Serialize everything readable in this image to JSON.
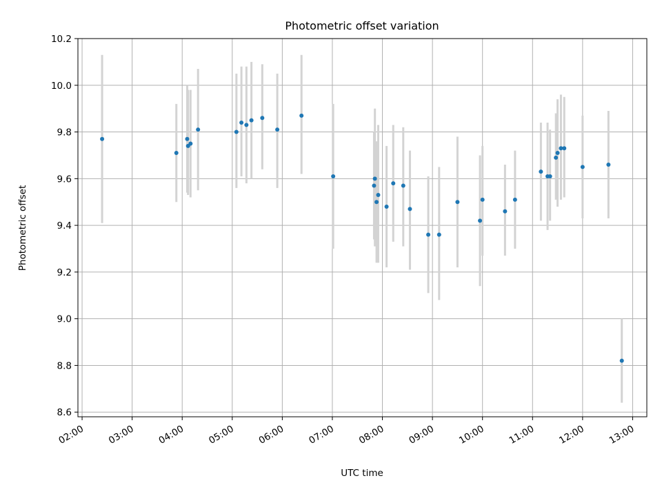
{
  "chart_data": {
    "type": "scatter",
    "title": "Photometric offset variation",
    "xlabel": "UTC time",
    "ylabel": "Photometric offset",
    "xlim": [
      "01:55",
      "13:17"
    ],
    "ylim": [
      8.58,
      10.2
    ],
    "grid": true,
    "x_ticks": [
      "02:00",
      "03:00",
      "04:00",
      "05:00",
      "06:00",
      "07:00",
      "08:00",
      "09:00",
      "10:00",
      "11:00",
      "12:00",
      "13:00"
    ],
    "y_ticks": [
      8.6,
      8.8,
      9.0,
      9.2,
      9.4,
      9.6,
      9.8,
      10.0,
      10.2
    ],
    "point_color": "#1f77b4",
    "errorbar_color": "#d3d3d3",
    "points": [
      {
        "x": "02:24",
        "y": 9.77,
        "ylow": 9.41,
        "yhigh": 10.13
      },
      {
        "x": "03:53",
        "y": 9.71,
        "ylow": 9.5,
        "yhigh": 9.92
      },
      {
        "x": "04:06",
        "y": 9.77,
        "ylow": 9.54,
        "yhigh": 10.0
      },
      {
        "x": "04:07",
        "y": 9.74,
        "ylow": 9.53,
        "yhigh": 9.98
      },
      {
        "x": "04:10",
        "y": 9.75,
        "ylow": 9.52,
        "yhigh": 9.98
      },
      {
        "x": "04:19",
        "y": 9.81,
        "ylow": 9.55,
        "yhigh": 10.07
      },
      {
        "x": "05:05",
        "y": 9.8,
        "ylow": 9.56,
        "yhigh": 10.05
      },
      {
        "x": "05:11",
        "y": 9.84,
        "ylow": 9.61,
        "yhigh": 10.08
      },
      {
        "x": "05:17",
        "y": 9.83,
        "ylow": 9.58,
        "yhigh": 10.08
      },
      {
        "x": "05:23",
        "y": 9.85,
        "ylow": 9.6,
        "yhigh": 10.1
      },
      {
        "x": "05:36",
        "y": 9.86,
        "ylow": 9.64,
        "yhigh": 10.09
      },
      {
        "x": "05:54",
        "y": 9.81,
        "ylow": 9.56,
        "yhigh": 10.05
      },
      {
        "x": "06:23",
        "y": 9.87,
        "ylow": 9.62,
        "yhigh": 10.13
      },
      {
        "x": "07:01",
        "y": 9.61,
        "ylow": 9.3,
        "yhigh": 9.92
      },
      {
        "x": "07:50",
        "y": 9.57,
        "ylow": 9.34,
        "yhigh": 9.8
      },
      {
        "x": "07:51",
        "y": 9.6,
        "ylow": 9.31,
        "yhigh": 9.9
      },
      {
        "x": "07:53",
        "y": 9.5,
        "ylow": 9.24,
        "yhigh": 9.76
      },
      {
        "x": "07:55",
        "y": 9.53,
        "ylow": 9.24,
        "yhigh": 9.83
      },
      {
        "x": "08:05",
        "y": 9.48,
        "ylow": 9.22,
        "yhigh": 9.74
      },
      {
        "x": "08:13",
        "y": 9.58,
        "ylow": 9.33,
        "yhigh": 9.83
      },
      {
        "x": "08:25",
        "y": 9.57,
        "ylow": 9.31,
        "yhigh": 9.82
      },
      {
        "x": "08:33",
        "y": 9.47,
        "ylow": 9.21,
        "yhigh": 9.72
      },
      {
        "x": "08:55",
        "y": 9.36,
        "ylow": 9.11,
        "yhigh": 9.61
      },
      {
        "x": "09:08",
        "y": 9.36,
        "ylow": 9.08,
        "yhigh": 9.65
      },
      {
        "x": "09:30",
        "y": 9.5,
        "ylow": 9.22,
        "yhigh": 9.78
      },
      {
        "x": "09:57",
        "y": 9.42,
        "ylow": 9.14,
        "yhigh": 9.7
      },
      {
        "x": "10:00",
        "y": 9.51,
        "ylow": 9.27,
        "yhigh": 9.74
      },
      {
        "x": "10:27",
        "y": 9.46,
        "ylow": 9.27,
        "yhigh": 9.66
      },
      {
        "x": "10:39",
        "y": 9.51,
        "ylow": 9.3,
        "yhigh": 9.72
      },
      {
        "x": "11:10",
        "y": 9.63,
        "ylow": 9.42,
        "yhigh": 9.84
      },
      {
        "x": "11:18",
        "y": 9.61,
        "ylow": 9.38,
        "yhigh": 9.84
      },
      {
        "x": "11:21",
        "y": 9.61,
        "ylow": 9.42,
        "yhigh": 9.81
      },
      {
        "x": "11:28",
        "y": 9.69,
        "ylow": 9.51,
        "yhigh": 9.88
      },
      {
        "x": "11:30",
        "y": 9.71,
        "ylow": 9.48,
        "yhigh": 9.94
      },
      {
        "x": "11:34",
        "y": 9.73,
        "ylow": 9.51,
        "yhigh": 9.96
      },
      {
        "x": "11:38",
        "y": 9.73,
        "ylow": 9.52,
        "yhigh": 9.95
      },
      {
        "x": "12:00",
        "y": 9.65,
        "ylow": 9.43,
        "yhigh": 9.87
      },
      {
        "x": "12:31",
        "y": 9.66,
        "ylow": 9.43,
        "yhigh": 9.89
      },
      {
        "x": "12:47",
        "y": 8.82,
        "ylow": 8.64,
        "yhigh": 9.0
      }
    ]
  }
}
